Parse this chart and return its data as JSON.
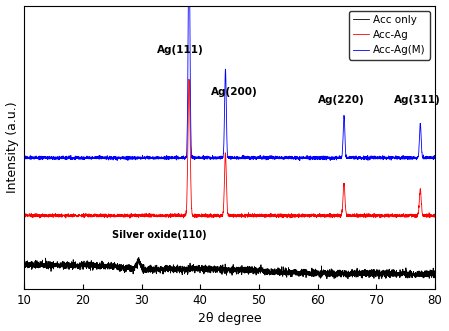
{
  "xlabel": "2θ degree",
  "ylabel": "Intensity (a.u.)",
  "xlim": [
    10,
    80
  ],
  "legend_labels": [
    "Acc only",
    "Acc-Ag",
    "Acc-Ag(M)"
  ],
  "legend_colors": [
    "black",
    "red",
    "blue"
  ],
  "peak_positions": {
    "Ag111": 38.1,
    "Ag200": 44.3,
    "Ag220": 64.5,
    "Ag311": 77.5,
    "SilverOxide110": 29.5
  },
  "peak_labels": {
    "Ag111": "Ag(111)",
    "Ag200": "Ag(200)",
    "Ag220": "Ag(220)",
    "Ag311": "Ag(311)",
    "SilverOxide110": "Silver oxide(110)"
  },
  "baseline_acc_only": 0.055,
  "baseline_acc_ag": 0.28,
  "baseline_acc_ag_m": 0.5,
  "ylim": [
    0,
    1.08
  ]
}
